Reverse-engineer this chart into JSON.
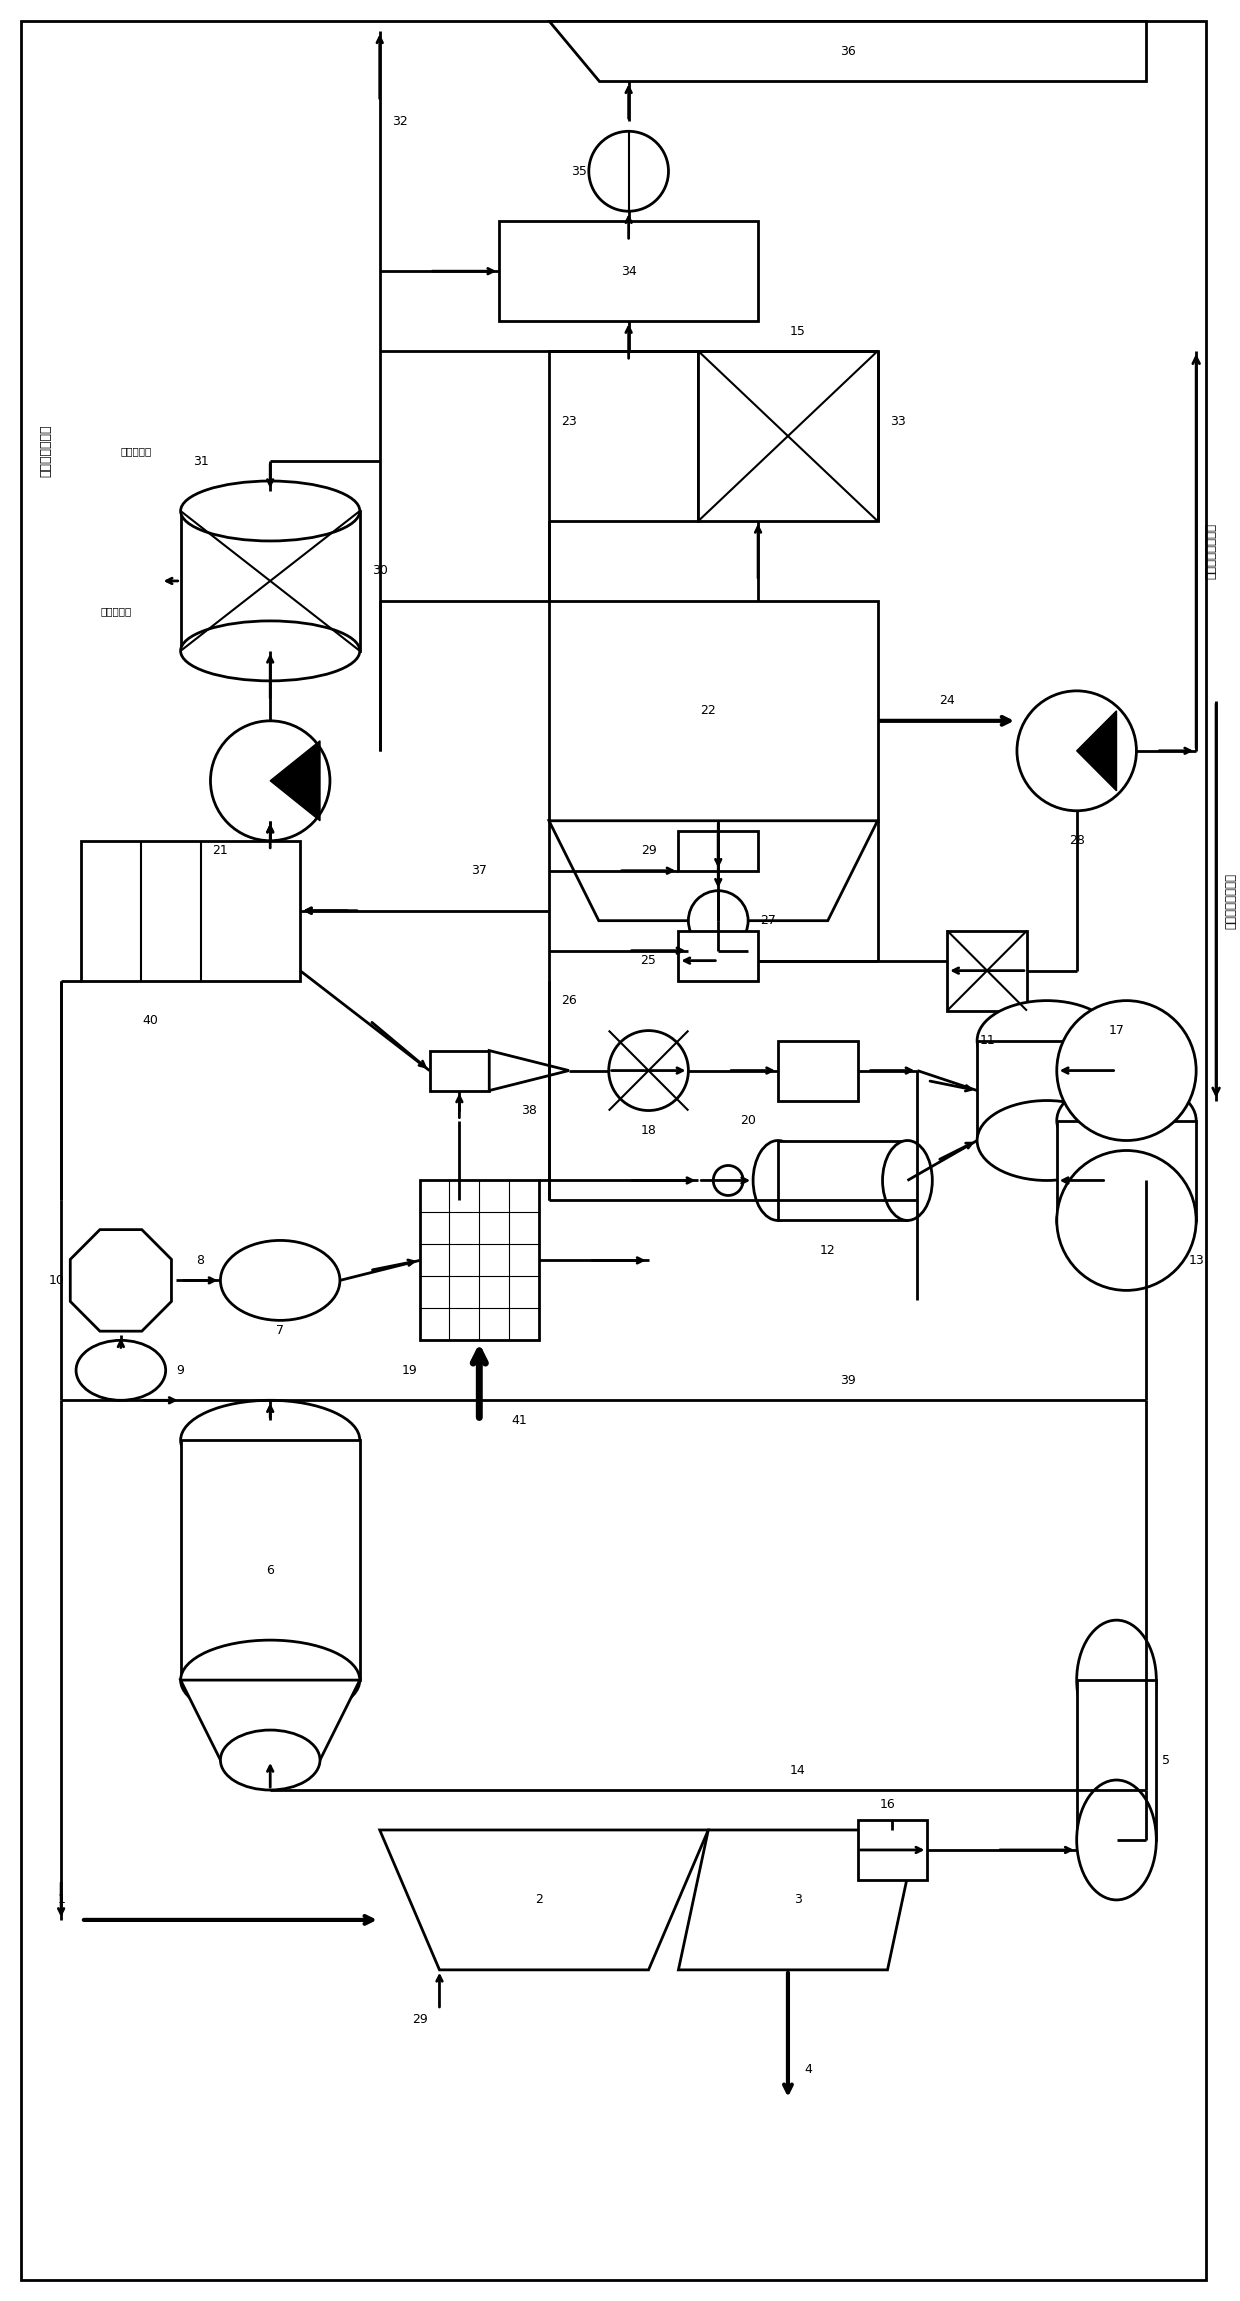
{
  "bg_color": "#ffffff",
  "line_color": "#000000",
  "figsize": [
    12.4,
    23.01
  ],
  "dpi": 100,
  "left_label": "去烟气净化系统",
  "right_label1": "回到气轮发电系统",
  "right_label2": "来自气轮发电系统",
  "cooling_in": "冷却水进口",
  "cooling_out": "冷却水出口"
}
